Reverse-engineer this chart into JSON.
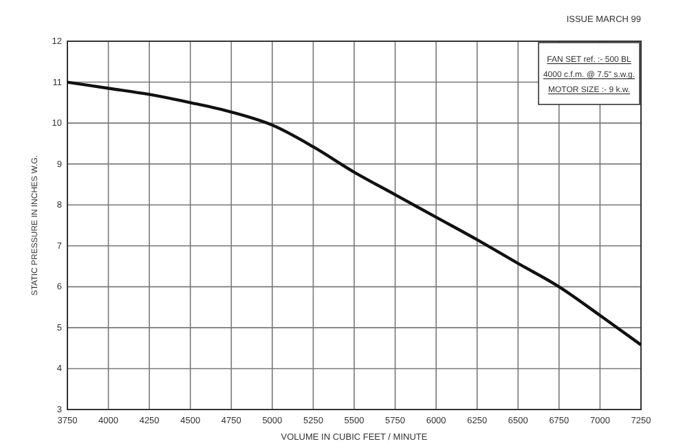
{
  "chart_data": {
    "type": "line",
    "xlabel": "VOLUME IN CUBIC FEET / MINUTE",
    "ylabel": "STATIC PRESSURE IN INCHES W.G.",
    "x": [
      3750,
      4000,
      4250,
      4500,
      4750,
      5000,
      5250,
      5500,
      5750,
      6000,
      6250,
      6500,
      6750,
      7000,
      7250
    ],
    "series": [
      {
        "color": "#111111",
        "values": [
          11.0,
          10.85,
          10.7,
          10.5,
          10.27,
          9.95,
          9.42,
          8.8,
          8.25,
          7.7,
          7.15,
          6.57,
          6.0,
          5.3,
          4.58
        ]
      }
    ],
    "xlim": [
      3750,
      7250
    ],
    "xticks": [
      3750,
      4000,
      4250,
      4500,
      4750,
      5000,
      5250,
      5500,
      5750,
      6000,
      6250,
      6500,
      6750,
      7000,
      7250
    ],
    "ylim": [
      3,
      12
    ],
    "yticks": [
      3,
      4,
      5,
      6,
      7,
      8,
      9,
      10,
      11,
      12
    ],
    "grid": true,
    "marker": "none",
    "line_style": "solid",
    "annotations": [
      "ISSUE MARCH 99",
      "FAN SET ref. :- 500 BL",
      "4000 c.f.m. @ 7.5\" s.w.g.",
      "MOTOR SIZE :- 9 k.w."
    ]
  }
}
